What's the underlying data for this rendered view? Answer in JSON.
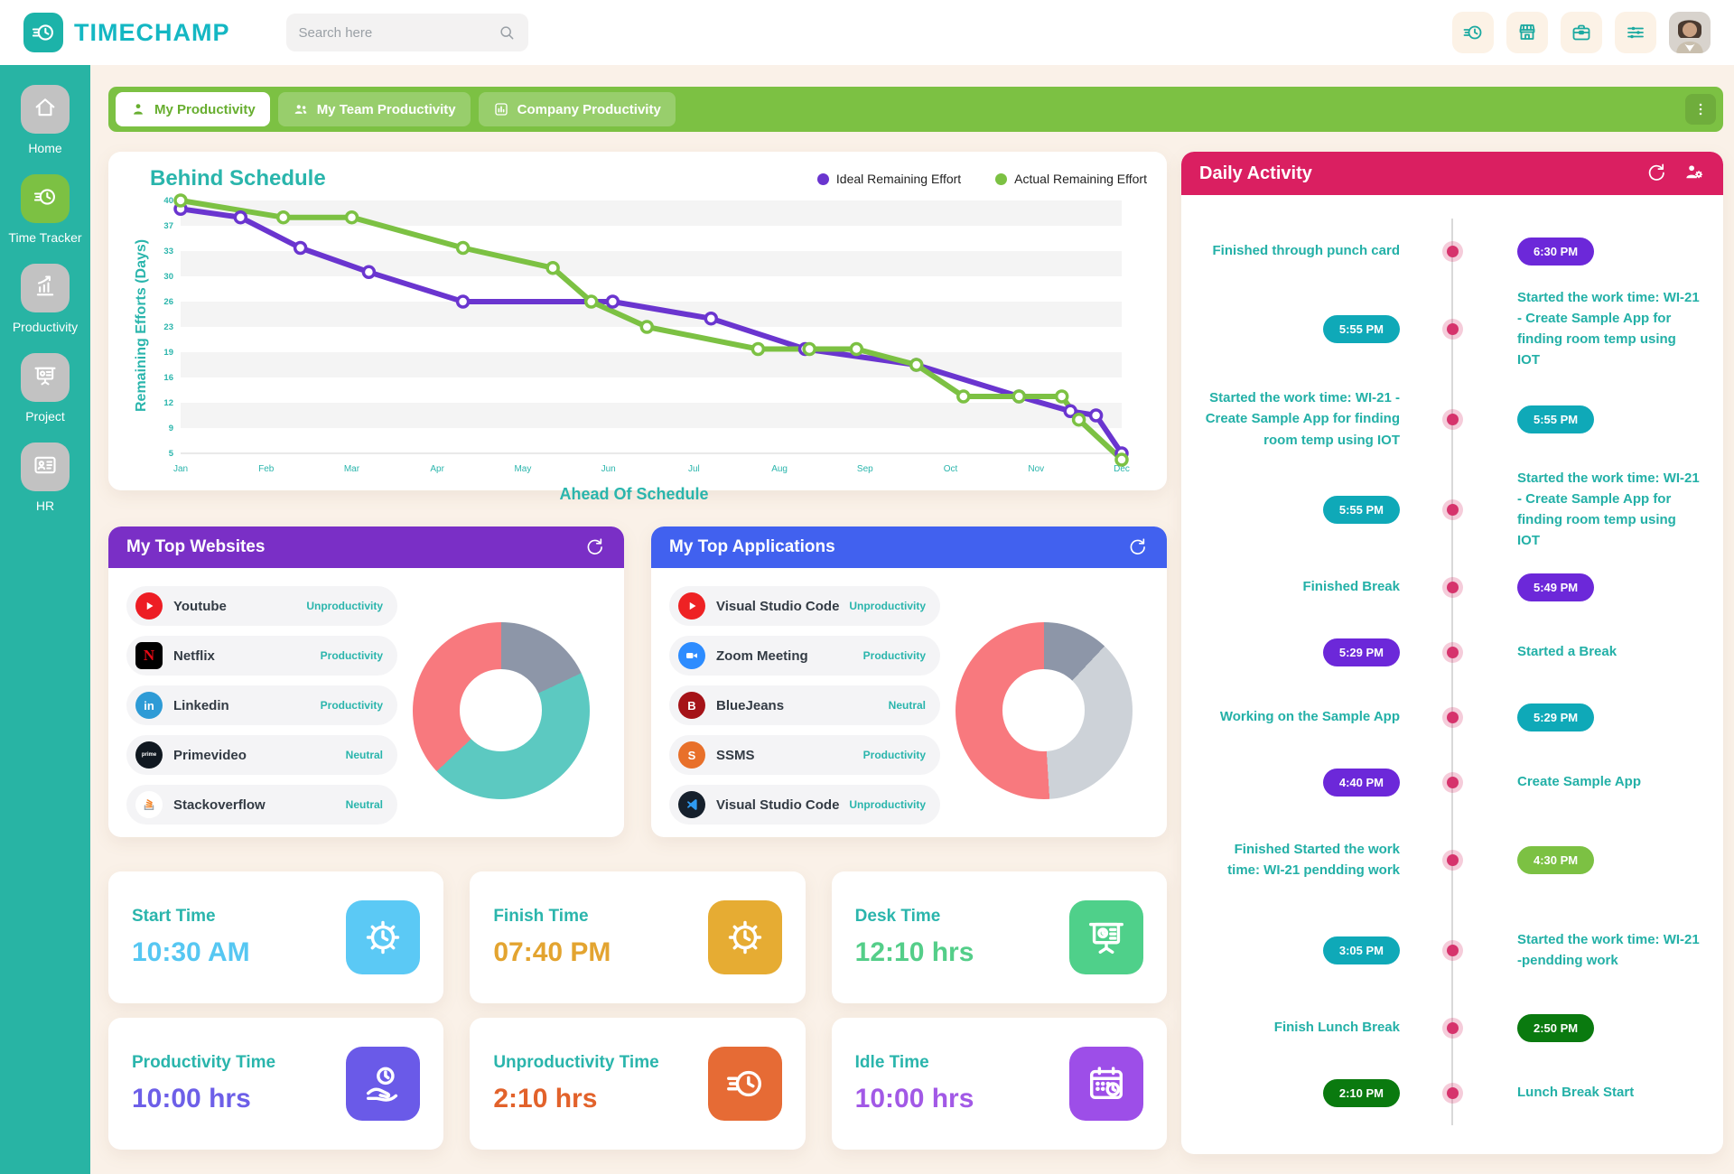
{
  "topbar": {
    "brand": "TIMECHAMP",
    "search_placeholder": "Search here",
    "action_icons": [
      "speed-clock",
      "store",
      "briefcase",
      "sliders"
    ]
  },
  "sidebar": {
    "items": [
      {
        "label": "Home",
        "icon": "home",
        "active": false
      },
      {
        "label": "Time Tracker",
        "icon": "speed-clock",
        "active": true
      },
      {
        "label": "Productivity",
        "icon": "growth-chart",
        "active": false
      },
      {
        "label": "Project",
        "icon": "presentation",
        "active": false
      },
      {
        "label": "HR",
        "icon": "id-card",
        "active": false
      }
    ]
  },
  "tabs": [
    {
      "label": "My Productivity",
      "icon": "person",
      "active": true
    },
    {
      "label": "My Team Productivity",
      "icon": "people",
      "active": false
    },
    {
      "label": "Company Productivity",
      "icon": "bar-chart",
      "active": false
    }
  ],
  "chart_data": {
    "type": "line",
    "title": "Behind Schedule",
    "xlabel": "Ahead Of Schedule",
    "ylabel": "Remaining Efforts (Days)",
    "x_ticks": [
      "Jan",
      "Feb",
      "Mar",
      "Apr",
      "May",
      "Jun",
      "Jul",
      "Aug",
      "Sep",
      "Oct",
      "Nov",
      "Dec"
    ],
    "y_ticks": [
      40,
      37,
      33,
      30,
      26,
      23,
      19,
      16,
      12,
      9,
      5
    ],
    "grid": "striped-bands",
    "legend_position": "top-right",
    "series": [
      {
        "name": "Ideal Remaining Effort",
        "color": "#6a35cf",
        "points": [
          [
            0,
            39
          ],
          [
            0.7,
            38
          ],
          [
            1.4,
            33.5
          ],
          [
            2.2,
            30.5
          ],
          [
            3.3,
            26
          ],
          [
            5.05,
            26
          ],
          [
            6.2,
            24
          ],
          [
            7.3,
            19.5
          ],
          [
            8.6,
            17.5
          ],
          [
            9.8,
            13
          ],
          [
            10.4,
            11
          ],
          [
            10.7,
            10.5
          ],
          [
            11,
            5
          ]
        ]
      },
      {
        "name": "Actual Remaining Effort",
        "color": "#7cc143",
        "points": [
          [
            0,
            40
          ],
          [
            1.2,
            38
          ],
          [
            2,
            38
          ],
          [
            3.3,
            33.5
          ],
          [
            4.35,
            31
          ],
          [
            4.8,
            26
          ],
          [
            5.45,
            23
          ],
          [
            6.75,
            19.5
          ],
          [
            7.35,
            19.5
          ],
          [
            7.9,
            19.5
          ],
          [
            8.6,
            17.5
          ],
          [
            9.15,
            13
          ],
          [
            9.8,
            13
          ],
          [
            10.3,
            13
          ],
          [
            10.5,
            10
          ],
          [
            11,
            4
          ]
        ]
      }
    ]
  },
  "top_websites": {
    "title": "My Top Websites",
    "header_color": "#7a2fc6",
    "items": [
      {
        "name": "Youtube",
        "tag": "Unproductivity",
        "icon": "youtube"
      },
      {
        "name": "Netflix",
        "tag": "Productivity",
        "icon": "netflix"
      },
      {
        "name": "Linkedin",
        "tag": "Productivity",
        "icon": "linkedin"
      },
      {
        "name": "Primevideo",
        "tag": "Neutral",
        "icon": "primevideo"
      },
      {
        "name": "Stackoverflow",
        "tag": "Neutral",
        "icon": "stackoverflow"
      }
    ],
    "donut_segments": [
      {
        "label": "unproductive",
        "color": "#8d96a8",
        "percent": 18
      },
      {
        "label": "productive",
        "color": "#5cc9c1",
        "percent": 45
      },
      {
        "label": "neutral",
        "color": "#f8797e",
        "percent": 37
      }
    ]
  },
  "top_applications": {
    "title": "My Top Applications",
    "header_color": "#4161ef",
    "items": [
      {
        "name": "Visual Studio Code",
        "tag": "Unproductivity",
        "icon": "vsc-red"
      },
      {
        "name": "Zoom Meeting",
        "tag": "Productivity",
        "icon": "zoom"
      },
      {
        "name": "BlueJeans",
        "tag": "Neutral",
        "icon": "bluejeans"
      },
      {
        "name": "SSMS",
        "tag": "Productivity",
        "icon": "ssms"
      },
      {
        "name": "Visual Studio Code",
        "tag": "Unproductivity",
        "icon": "vscode"
      }
    ],
    "donut_segments": [
      {
        "label": "slate",
        "color": "#8d96a8",
        "percent": 12
      },
      {
        "label": "light-gray",
        "color": "#cdd2d8",
        "percent": 37
      },
      {
        "label": "pink",
        "color": "#f8797e",
        "percent": 51
      }
    ]
  },
  "stats": [
    {
      "label": "Start Time",
      "value": "10:30 AM",
      "value_color": "#56c7f2",
      "tile_color": "#5bc9f5",
      "icon": "gear-clock"
    },
    {
      "label": "Finish Time",
      "value": "07:40 PM",
      "value_color": "#e3a430",
      "tile_color": "#e6ac33",
      "icon": "gear-clock"
    },
    {
      "label": "Desk Time",
      "value": "12:10 hrs",
      "value_color": "#54ce89",
      "tile_color": "#4fd08a",
      "icon": "desk-board"
    },
    {
      "label": "Productivity Time",
      "value": "10:00 hrs",
      "value_color": "#6d5fe8",
      "tile_color": "#6a5ae8",
      "icon": "hand-clock"
    },
    {
      "label": "Unproductivity Time",
      "value": "2:10 hrs",
      "value_color": "#e2622b",
      "tile_color": "#e66b35",
      "icon": "speed-clock"
    },
    {
      "label": "Idle Time",
      "value": "10:00 hrs",
      "value_color": "#a259e6",
      "tile_color": "#9d4ee8",
      "icon": "calendar-clock"
    }
  ],
  "daily_activity": {
    "title": "Daily Activity",
    "header_color": "#da1f61",
    "entries": [
      {
        "text": "Finished through punch card",
        "time": "6:30 PM",
        "badge_color": "#6c28d9",
        "text_side": "left"
      },
      {
        "text": "Started the work time: WI-21 - Create Sample App for finding room temp using IOT",
        "time": "5:55 PM",
        "badge_color": "#0fa9b8",
        "text_side": "right"
      },
      {
        "text": "Started the work time: WI-21 - Create Sample App for finding room temp using IOT",
        "time": "5:55 PM",
        "badge_color": "#0fa9b8",
        "text_side": "left"
      },
      {
        "text": "Started the work time: WI-21 - Create Sample App for finding room temp using IOT",
        "time": "5:55 PM",
        "badge_color": "#0fa9b8",
        "text_side": "right"
      },
      {
        "text": "Finished Break",
        "time": "5:49 PM",
        "badge_color": "#6c28d9",
        "text_side": "left"
      },
      {
        "text": "Started a Break",
        "time": "5:29 PM",
        "badge_color": "#6c28d9",
        "text_side": "right"
      },
      {
        "text": "Working on the Sample App",
        "time": "5:29 PM",
        "badge_color": "#0fa9b8",
        "text_side": "left"
      },
      {
        "text": "Create Sample App",
        "time": "4:40 PM",
        "badge_color": "#6c28d9",
        "text_side": "right"
      },
      {
        "text": "Finished Started the work time: WI-21 pendding work",
        "time": "4:30 PM",
        "badge_color": "#7cc143",
        "text_side": "left"
      },
      {
        "text": "Started the work time: WI-21 -pendding work",
        "time": "3:05 PM",
        "badge_color": "#0fa9b8",
        "text_side": "right"
      },
      {
        "text": "Finish Lunch Break",
        "time": "2:50 PM",
        "badge_color": "#0a7a0f",
        "text_side": "left"
      },
      {
        "text": "Lunch Break Start",
        "time": "2:10 PM",
        "badge_color": "#0a7a0f",
        "text_side": "right"
      }
    ]
  },
  "colors": {
    "brand_teal": "#14b7c3",
    "sidebar_bg": "#28b4a4",
    "active_green": "#7cc143",
    "page_bg": "#faf1e8",
    "timeline_text": "#23b0a7",
    "timeline_dot": "#d6336c"
  }
}
